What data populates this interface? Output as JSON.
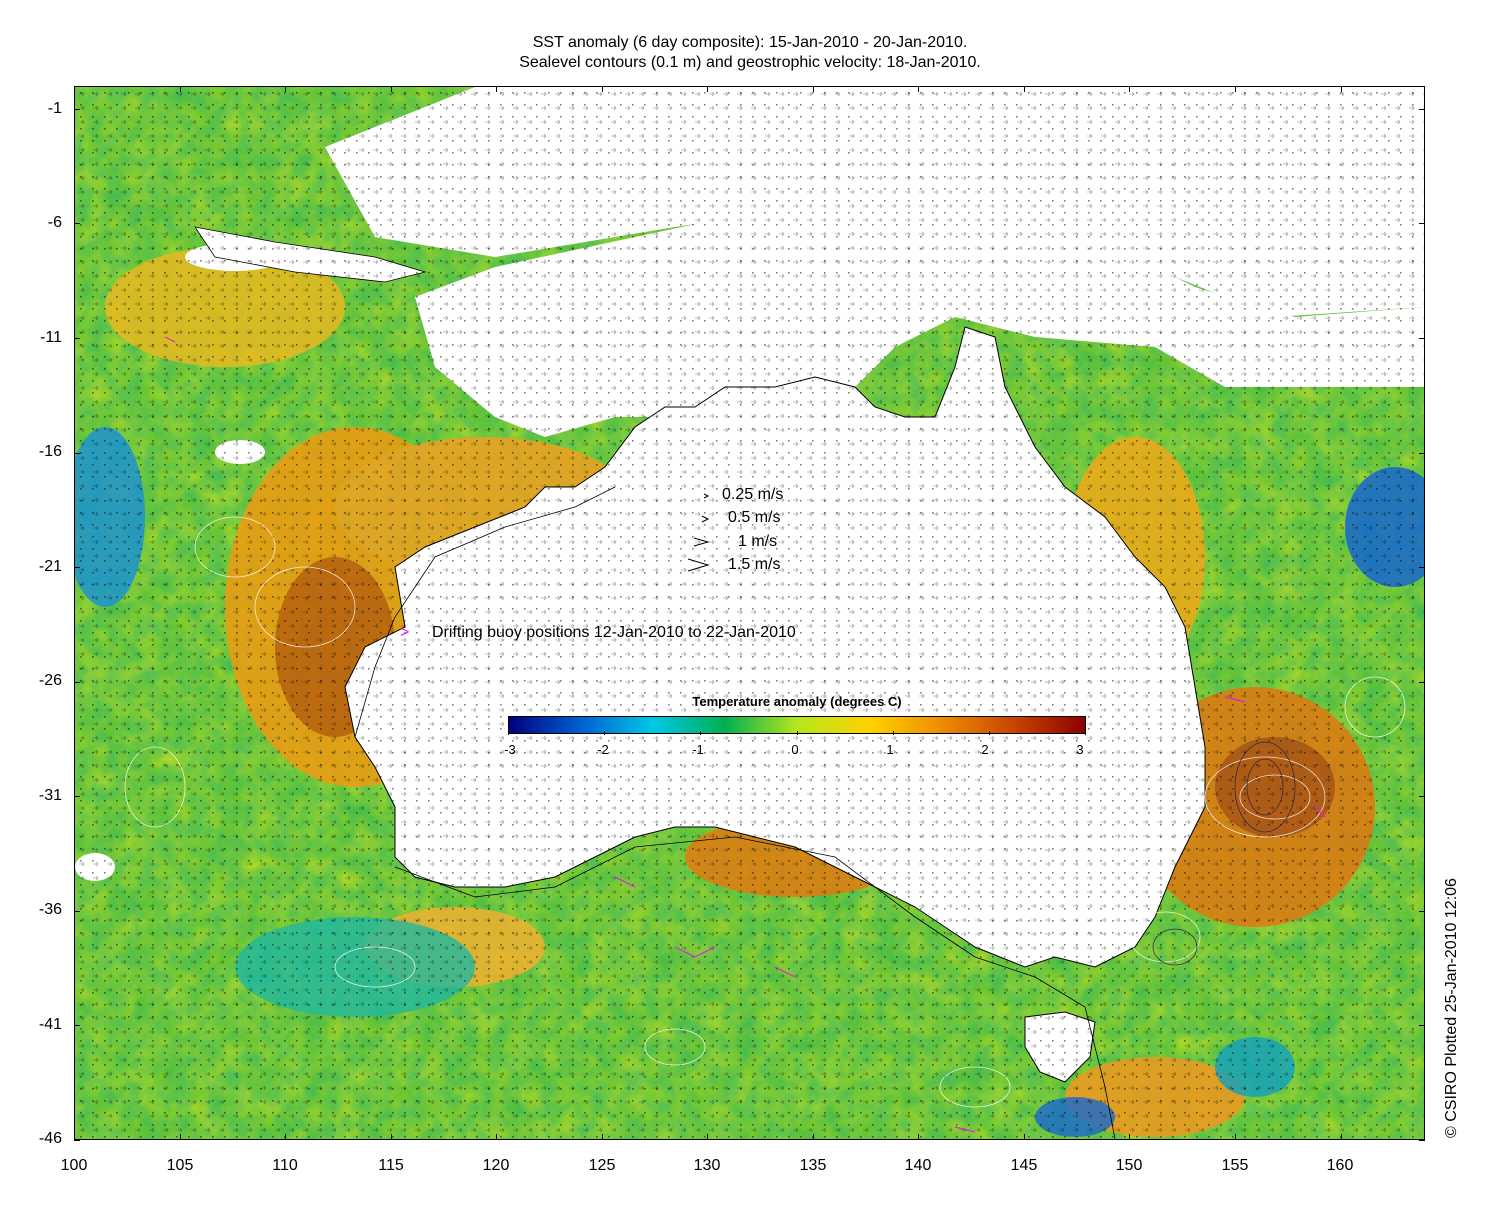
{
  "title": {
    "line1": "SST anomaly (6 day composite): 15-Jan-2010 - 20-Jan-2010.",
    "line2": "Sealevel contours (0.1 m) and geostrophic velocity: 18-Jan-2010."
  },
  "axes": {
    "x_ticks": [
      "100",
      "105",
      "110",
      "115",
      "120",
      "125",
      "130",
      "135",
      "140",
      "145",
      "150",
      "155",
      "160"
    ],
    "y_ticks": [
      "-1",
      "-6",
      "-11",
      "-16",
      "-21",
      "-26",
      "-31",
      "-36",
      "-41",
      "-46"
    ],
    "lon_range": [
      100,
      164
    ],
    "lat_range": [
      -46,
      0
    ]
  },
  "velocity_legend": [
    {
      "label": "0.25 m/s",
      "speed": 0.25
    },
    {
      "label": "0.5 m/s",
      "speed": 0.5
    },
    {
      "label": "1 m/s",
      "speed": 1
    },
    {
      "label": "1.5 m/s",
      "speed": 1.5
    }
  ],
  "buoy_legend": {
    "marker": ">",
    "label": "Drifting buoy positions 12-Jan-2010 to 22-Jan-2010",
    "color": "#e020e0"
  },
  "colorbar": {
    "title": "Temperature anomaly (degrees C)",
    "tick_labels": [
      "-3",
      "-2",
      "-1",
      "0",
      "1",
      "2",
      "3"
    ],
    "range": [
      -3,
      3
    ],
    "colors": [
      "#00007f",
      "#0060d0",
      "#00c8e6",
      "#00b050",
      "#b4e61e",
      "#ffd200",
      "#f08c00",
      "#c84600",
      "#8c0000"
    ]
  },
  "credit": "© CSIRO Plotted 25-Jan-2010 12:06"
}
